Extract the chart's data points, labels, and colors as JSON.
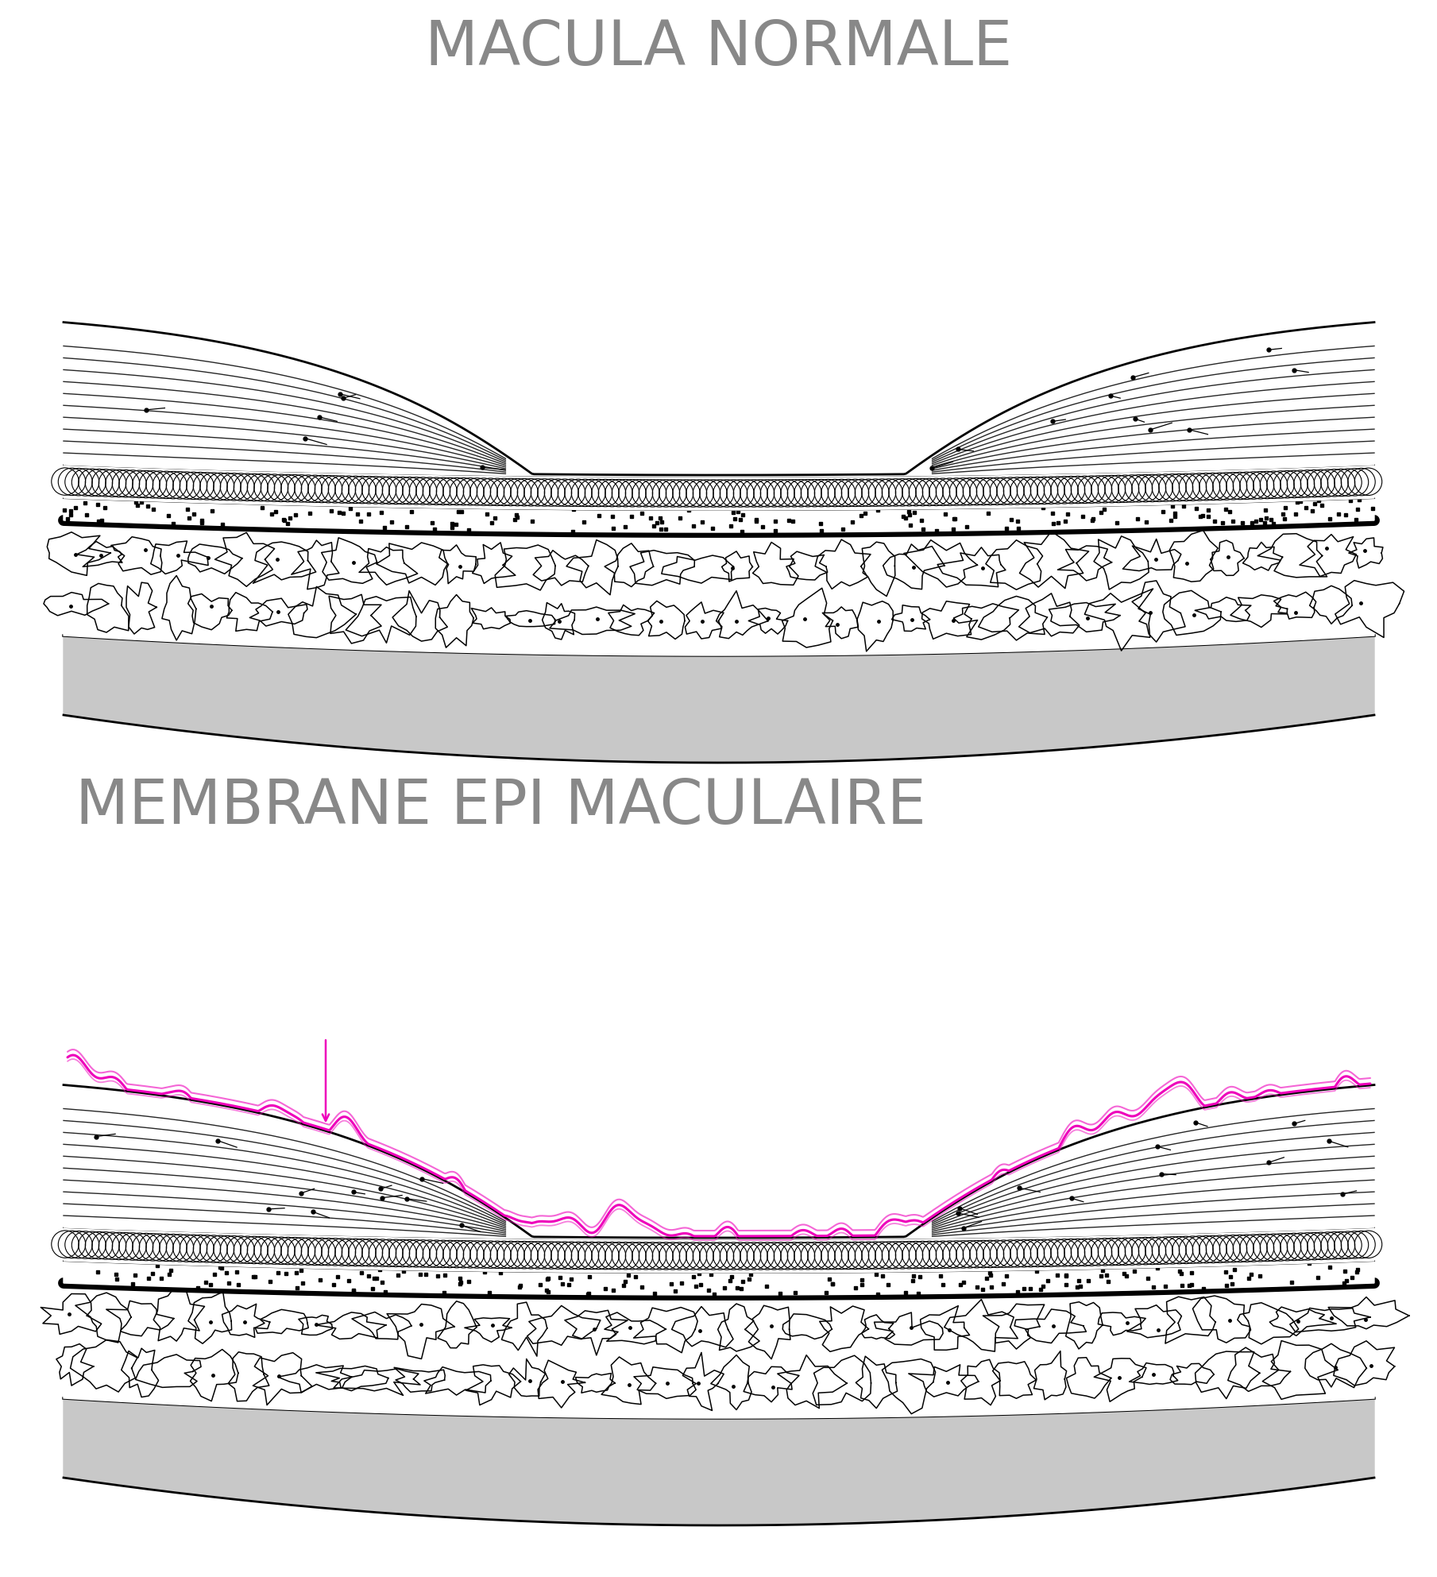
{
  "title_top": "MACULA NORMALE",
  "title_bottom": "MEMBRANE EPI MACULAIRE",
  "title_color": "#888888",
  "title_fontsize": 56,
  "bg_color": "#ffffff",
  "gray_color": "#c8c8c8",
  "pink": "#ff44cc"
}
